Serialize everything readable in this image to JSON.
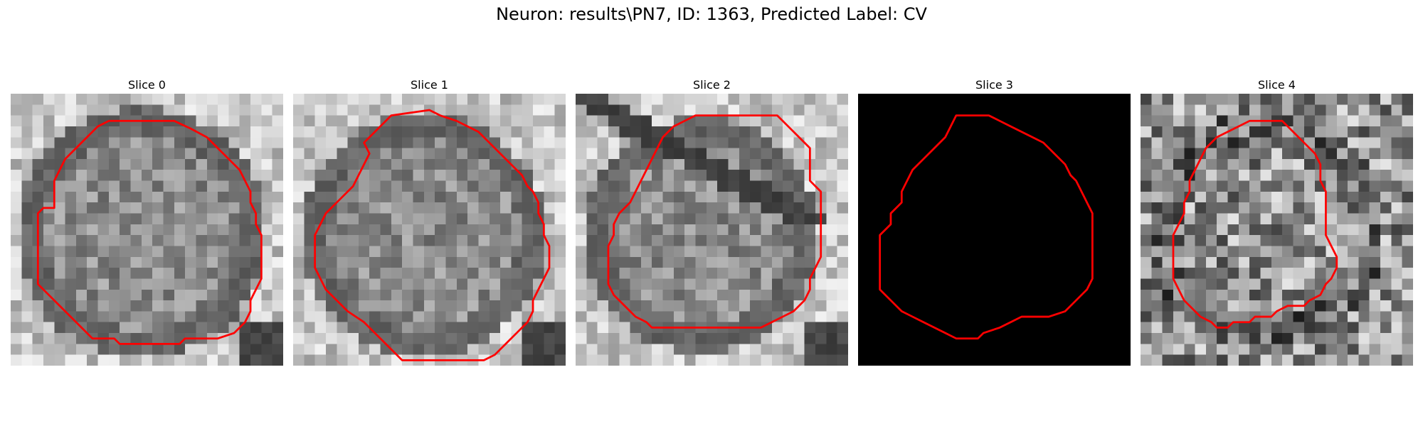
{
  "figure": {
    "title": "Neuron: results\\PN7, ID: 1363, Predicted Label: CV",
    "contour_color": "#ff0000"
  },
  "panels": [
    {
      "title": "Slice 0",
      "seed": 11,
      "pattern": "ring",
      "ring_center": [
        12.0,
        12.8
      ],
      "ring_radius": 10.2,
      "contour": [
        [
          9,
          2.5
        ],
        [
          15,
          2.5
        ],
        [
          16.5,
          3.2
        ],
        [
          18,
          4
        ],
        [
          19,
          5
        ],
        [
          20,
          6
        ],
        [
          21,
          7
        ],
        [
          21.5,
          8
        ],
        [
          22,
          9
        ],
        [
          22,
          10
        ],
        [
          22.5,
          11
        ],
        [
          22.5,
          12
        ],
        [
          23,
          13
        ],
        [
          23,
          14
        ],
        [
          23,
          15
        ],
        [
          23,
          16
        ],
        [
          23,
          17
        ],
        [
          22.5,
          18
        ],
        [
          22,
          19
        ],
        [
          22,
          20
        ],
        [
          21.5,
          21
        ],
        [
          20.5,
          22
        ],
        [
          19,
          22.5
        ],
        [
          16,
          22.5
        ],
        [
          15.5,
          23
        ],
        [
          13,
          23
        ],
        [
          11,
          23
        ],
        [
          10,
          23
        ],
        [
          9.5,
          22.5
        ],
        [
          7.5,
          22.5
        ],
        [
          6.5,
          21.5
        ],
        [
          5.5,
          20.5
        ],
        [
          4.5,
          19.5
        ],
        [
          3.5,
          18.5
        ],
        [
          2.5,
          17.5
        ],
        [
          2.5,
          16
        ],
        [
          2.5,
          14
        ],
        [
          2.5,
          12
        ],
        [
          2.5,
          11
        ],
        [
          3,
          10.5
        ],
        [
          4,
          10.5
        ],
        [
          4,
          9
        ],
        [
          4,
          8
        ],
        [
          4.5,
          7
        ],
        [
          5,
          6
        ],
        [
          6,
          5
        ],
        [
          7,
          4
        ],
        [
          8,
          3
        ]
      ]
    },
    {
      "title": "Slice 1",
      "seed": 23,
      "pattern": "ring",
      "ring_center": [
        12.0,
        13.0
      ],
      "ring_radius": 10.0,
      "contour": [
        [
          9,
          2
        ],
        [
          12.5,
          1.5
        ],
        [
          13.5,
          2
        ],
        [
          15,
          2.5
        ],
        [
          16,
          3
        ],
        [
          17,
          3.5
        ],
        [
          18,
          4.5
        ],
        [
          19,
          5.5
        ],
        [
          20,
          6.5
        ],
        [
          21,
          7.5
        ],
        [
          21.5,
          8.5
        ],
        [
          22,
          9
        ],
        [
          22.5,
          10
        ],
        [
          22.5,
          11
        ],
        [
          23,
          12
        ],
        [
          23,
          13
        ],
        [
          23.5,
          14
        ],
        [
          23.5,
          16
        ],
        [
          23,
          17
        ],
        [
          22.5,
          18
        ],
        [
          22,
          19
        ],
        [
          22,
          20
        ],
        [
          21.5,
          21
        ],
        [
          20.5,
          22
        ],
        [
          19.5,
          23
        ],
        [
          18.5,
          24
        ],
        [
          17.5,
          24.5
        ],
        [
          16,
          24.5
        ],
        [
          12,
          24.5
        ],
        [
          10,
          24.5
        ],
        [
          9.5,
          24
        ],
        [
          8.5,
          23
        ],
        [
          7.5,
          22
        ],
        [
          6.5,
          21
        ],
        [
          5,
          20
        ],
        [
          4,
          19
        ],
        [
          3,
          18
        ],
        [
          2.5,
          17
        ],
        [
          2,
          16
        ],
        [
          2,
          14
        ],
        [
          2,
          13
        ],
        [
          2.5,
          12
        ],
        [
          3,
          11
        ],
        [
          3.5,
          10.5
        ],
        [
          4,
          10
        ],
        [
          4.5,
          9.5
        ],
        [
          5,
          9
        ],
        [
          5.5,
          8.5
        ],
        [
          6,
          7.5
        ],
        [
          6.5,
          6.5
        ],
        [
          7,
          5.5
        ],
        [
          6.5,
          4.5
        ],
        [
          7.5,
          3.5
        ],
        [
          8,
          3
        ]
      ]
    },
    {
      "title": "Slice 2",
      "seed": 37,
      "pattern": "stripe",
      "ring_center": [
        11.5,
        13.0
      ],
      "ring_radius": 9.5,
      "contour": [
        [
          11,
          2
        ],
        [
          18.5,
          2
        ],
        [
          19.5,
          3
        ],
        [
          20.5,
          4
        ],
        [
          21.5,
          5
        ],
        [
          21.5,
          6
        ],
        [
          21.5,
          7
        ],
        [
          21.5,
          8
        ],
        [
          22,
          8.5
        ],
        [
          22.5,
          9
        ],
        [
          22.5,
          11
        ],
        [
          22.5,
          13
        ],
        [
          22.5,
          15
        ],
        [
          22,
          16
        ],
        [
          21.5,
          17
        ],
        [
          21.5,
          18
        ],
        [
          21,
          19
        ],
        [
          20,
          20
        ],
        [
          19,
          20.5
        ],
        [
          18,
          21
        ],
        [
          17,
          21.5
        ],
        [
          14,
          21.5
        ],
        [
          10,
          21.5
        ],
        [
          7,
          21.5
        ],
        [
          6.5,
          21
        ],
        [
          5.5,
          20.5
        ],
        [
          4.5,
          19.5
        ],
        [
          3.5,
          18.5
        ],
        [
          3,
          17.5
        ],
        [
          3,
          16
        ],
        [
          3,
          14
        ],
        [
          3.5,
          13
        ],
        [
          3.5,
          12
        ],
        [
          4,
          11
        ],
        [
          5,
          10
        ],
        [
          5.5,
          9
        ],
        [
          6,
          8
        ],
        [
          6.5,
          7
        ],
        [
          7,
          6
        ],
        [
          7.5,
          5
        ],
        [
          8,
          4
        ],
        [
          9,
          3
        ],
        [
          10,
          2.5
        ]
      ]
    },
    {
      "title": "Slice 3",
      "seed": 0,
      "pattern": "black",
      "ring_center": [
        12,
        12
      ],
      "ring_radius": 10,
      "contour": [
        [
          9,
          2
        ],
        [
          12,
          2
        ],
        [
          13,
          2.5
        ],
        [
          14,
          3
        ],
        [
          15,
          3.5
        ],
        [
          16,
          4
        ],
        [
          17,
          4.5
        ],
        [
          18,
          5.5
        ],
        [
          19,
          6.5
        ],
        [
          19.5,
          7.5
        ],
        [
          20,
          8
        ],
        [
          20.5,
          9
        ],
        [
          21,
          10
        ],
        [
          21.5,
          11
        ],
        [
          21.5,
          13
        ],
        [
          21.5,
          15
        ],
        [
          21.5,
          17
        ],
        [
          21,
          18
        ],
        [
          20,
          19
        ],
        [
          19,
          20
        ],
        [
          17.5,
          20.5
        ],
        [
          15,
          20.5
        ],
        [
          14,
          21
        ],
        [
          13,
          21.5
        ],
        [
          11.5,
          22
        ],
        [
          11,
          22.5
        ],
        [
          9,
          22.5
        ],
        [
          8,
          22
        ],
        [
          7,
          21.5
        ],
        [
          6,
          21
        ],
        [
          5,
          20.5
        ],
        [
          4,
          20
        ],
        [
          3,
          19
        ],
        [
          2,
          18
        ],
        [
          2,
          15
        ],
        [
          2,
          13
        ],
        [
          3,
          12
        ],
        [
          3,
          11
        ],
        [
          4,
          10
        ],
        [
          4,
          9
        ],
        [
          4.5,
          8
        ],
        [
          5,
          7
        ],
        [
          6,
          6
        ],
        [
          7,
          5
        ],
        [
          8,
          4
        ],
        [
          8.5,
          3
        ]
      ]
    },
    {
      "title": "Slice 4",
      "seed": 53,
      "pattern": "noisy",
      "ring_center": [
        11.5,
        12.5
      ],
      "ring_radius": 9.5,
      "contour": [
        [
          10,
          2.5
        ],
        [
          12,
          2.5
        ],
        [
          13,
          2.5
        ],
        [
          14,
          3.5
        ],
        [
          15,
          4.5
        ],
        [
          16,
          5.5
        ],
        [
          16.5,
          6.5
        ],
        [
          16.5,
          8
        ],
        [
          17,
          9
        ],
        [
          17,
          10
        ],
        [
          17,
          11
        ],
        [
          17,
          12
        ],
        [
          17,
          13
        ],
        [
          17.5,
          14
        ],
        [
          18,
          15
        ],
        [
          18,
          16
        ],
        [
          17.5,
          17
        ],
        [
          17,
          17.5
        ],
        [
          16.5,
          18.5
        ],
        [
          15.5,
          19
        ],
        [
          15,
          19.5
        ],
        [
          13.5,
          19.5
        ],
        [
          12.5,
          20
        ],
        [
          12,
          20.5
        ],
        [
          10.5,
          20.5
        ],
        [
          10,
          21
        ],
        [
          8.5,
          21
        ],
        [
          8,
          21.5
        ],
        [
          7,
          21.5
        ],
        [
          6.5,
          21
        ],
        [
          5.5,
          20.5
        ],
        [
          5,
          20
        ],
        [
          4,
          19
        ],
        [
          3.5,
          18
        ],
        [
          3,
          17
        ],
        [
          3,
          15
        ],
        [
          3,
          13
        ],
        [
          3.5,
          12
        ],
        [
          4,
          11
        ],
        [
          4,
          10
        ],
        [
          4.5,
          9
        ],
        [
          4.5,
          8
        ],
        [
          5,
          7
        ],
        [
          5.5,
          6
        ],
        [
          6,
          5
        ],
        [
          7,
          4
        ],
        [
          8,
          3.5
        ],
        [
          9,
          3
        ]
      ]
    }
  ]
}
